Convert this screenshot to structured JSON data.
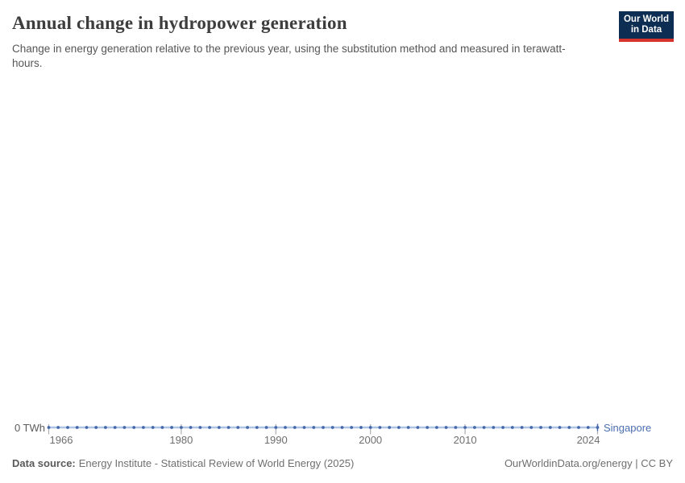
{
  "header": {
    "title": "Annual change in hydropower generation",
    "subtitle": "Change in energy generation relative to the previous year, using the substitution method and measured in terawatt-hours."
  },
  "logo": {
    "line1": "Our World",
    "line2": "in Data",
    "background_color": "#0d2d52",
    "accent_color": "#d6322e"
  },
  "chart_data": {
    "type": "line",
    "title": "Annual change in hydropower generation",
    "xlabel": "",
    "ylabel": "TWh",
    "xlim": [
      1966,
      2024
    ],
    "ylim": [
      0,
      0
    ],
    "grid": false,
    "legend_position": "end-of-line",
    "x_ticks": [
      1966,
      1980,
      1990,
      2000,
      2010,
      2024
    ],
    "y_tick_labels": [
      "0 TWh"
    ],
    "series": [
      {
        "name": "Singapore",
        "color": "#4b6eb2",
        "x": [
          1966,
          1967,
          1968,
          1969,
          1970,
          1971,
          1972,
          1973,
          1974,
          1975,
          1976,
          1977,
          1978,
          1979,
          1980,
          1981,
          1982,
          1983,
          1984,
          1985,
          1986,
          1987,
          1988,
          1989,
          1990,
          1991,
          1992,
          1993,
          1994,
          1995,
          1996,
          1997,
          1998,
          1999,
          2000,
          2001,
          2002,
          2003,
          2004,
          2005,
          2006,
          2007,
          2008,
          2009,
          2010,
          2011,
          2012,
          2013,
          2014,
          2015,
          2016,
          2017,
          2018,
          2019,
          2020,
          2021,
          2022,
          2023,
          2024
        ],
        "values": [
          0,
          0,
          0,
          0,
          0,
          0,
          0,
          0,
          0,
          0,
          0,
          0,
          0,
          0,
          0,
          0,
          0,
          0,
          0,
          0,
          0,
          0,
          0,
          0,
          0,
          0,
          0,
          0,
          0,
          0,
          0,
          0,
          0,
          0,
          0,
          0,
          0,
          0,
          0,
          0,
          0,
          0,
          0,
          0,
          0,
          0,
          0,
          0,
          0,
          0,
          0,
          0,
          0,
          0,
          0,
          0,
          0,
          0,
          0
        ]
      }
    ],
    "colors": {
      "line": "#afc3e3",
      "marker": "#4467ab",
      "tick": "#a8adb5",
      "entity_label": "#4b6eb2"
    }
  },
  "footer": {
    "datasource_label": "Data source:",
    "datasource_value": "Energy Institute - Statistical Review of World Energy (2025)",
    "rights": "OurWorldinData.org/energy | CC BY"
  }
}
